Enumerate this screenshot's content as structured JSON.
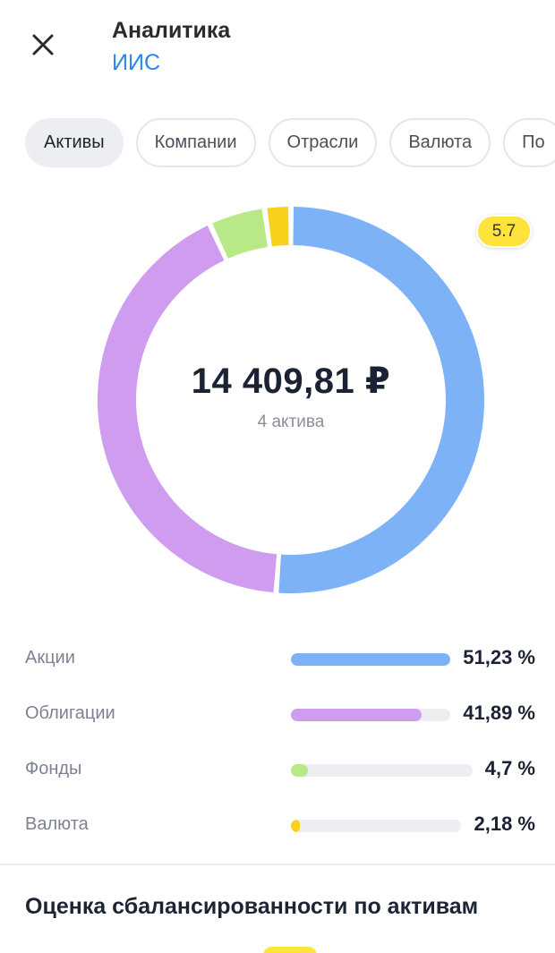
{
  "header": {
    "title": "Аналитика",
    "subtitle": "ИИС"
  },
  "tabs": [
    {
      "label": "Активы",
      "active": true
    },
    {
      "label": "Компании",
      "active": false
    },
    {
      "label": "Отрасли",
      "active": false
    },
    {
      "label": "Валюта",
      "active": false
    },
    {
      "label": "По",
      "active": false
    }
  ],
  "summary": {
    "total": "14 409,81 ₽",
    "count": "4 актива"
  },
  "badge": "5.7",
  "chart_data": {
    "type": "pie",
    "categories": [
      "Акции",
      "Облигации",
      "Фонды",
      "Валюта"
    ],
    "values": [
      51.23,
      41.89,
      4.7,
      2.18
    ],
    "value_labels": [
      "51,23 %",
      "41,89 %",
      "4,7 %",
      "2,18 %"
    ],
    "colors": [
      "#7eb2f7",
      "#cf9cf0",
      "#b8e986",
      "#f8d11c"
    ]
  },
  "section_title": "Оценка сбалансированности по активам"
}
